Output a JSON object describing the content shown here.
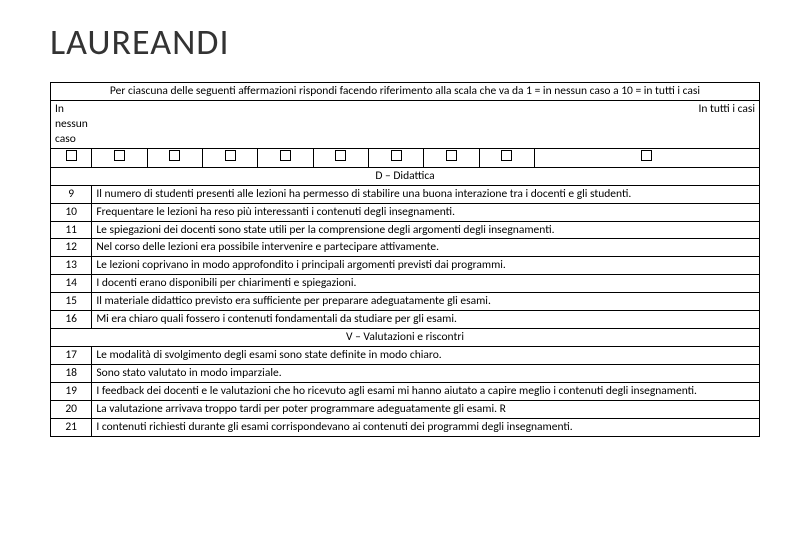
{
  "title": "LAUREANDI",
  "instruction": "Per ciascuna delle seguenti affermazioni rispondi facendo riferimento alla scala che va da 1 = in nessun caso a 10 = in tutti i casi",
  "scale": {
    "left": "In nessun caso",
    "right": "In tutti i casi",
    "boxes": 10
  },
  "sections": [
    {
      "header": "D – Didattica",
      "rows": [
        {
          "n": "9",
          "t": "Il numero di studenti presenti alle lezioni ha permesso di stabilire una buona interazione tra i docenti e gli studenti."
        },
        {
          "n": "10",
          "t": "Frequentare le lezioni ha reso più interessanti i contenuti degli insegnamenti."
        },
        {
          "n": "11",
          "t": "Le spiegazioni dei docenti sono state utili per la comprensione degli argomenti degli insegnamenti."
        },
        {
          "n": "12",
          "t": "Nel corso delle lezioni era possibile intervenire e partecipare attivamente."
        },
        {
          "n": "13",
          "t": "Le lezioni coprivano in modo approfondito i principali argomenti previsti dai programmi."
        },
        {
          "n": "14",
          "t": "I docenti erano disponibili per chiarimenti e spiegazioni."
        },
        {
          "n": "15",
          "t": "Il materiale didattico previsto era sufficiente per preparare adeguatamente gli esami."
        },
        {
          "n": "16",
          "t": "Mi era chiaro quali fossero i contenuti fondamentali da studiare per gli esami."
        }
      ]
    },
    {
      "header": "V – Valutazioni e riscontri",
      "rows": [
        {
          "n": "17",
          "t": "Le modalità di svolgimento degli esami sono state definite in modo chiaro."
        },
        {
          "n": "18",
          "t": "Sono stato valutato in modo imparziale."
        },
        {
          "n": "19",
          "t": "I feedback dei docenti e le valutazioni che ho ricevuto agli esami mi hanno aiutato a capire meglio i contenuti degli insegnamenti."
        },
        {
          "n": "20",
          "t": "La valutazione arrivava troppo tardi per poter programmare adeguatamente gli esami. R"
        },
        {
          "n": "21",
          "t": "I contenuti richiesti durante gli esami corrispondevano ai contenuti dei programmi degli insegnamenti."
        }
      ]
    }
  ],
  "colors": {
    "text": "#333333",
    "border": "#000000",
    "background": "#ffffff"
  }
}
